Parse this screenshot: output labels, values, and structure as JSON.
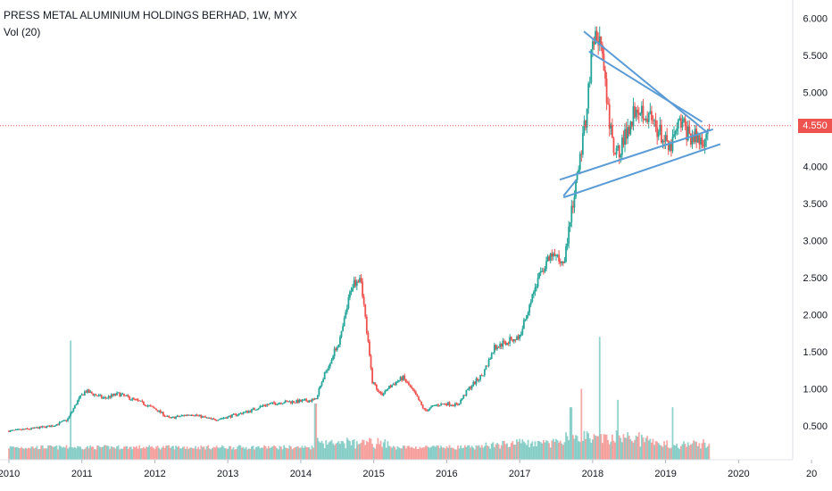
{
  "header": {
    "symbol_line": "PRESS METAL ALUMINIUM HOLDINGS BERHAD, 1W, MYX",
    "volume_line": "Vol (20)"
  },
  "colors": {
    "up": "#26a69a",
    "down": "#ef5350",
    "trendline": "#5b9bd5",
    "last_price_line": "#ef5350",
    "axis_text": "#131722"
  },
  "chart_data": {
    "type": "candlestick",
    "title": "PRESS METAL ALUMINIUM HOLDINGS BERHAD, 1W, MYX",
    "ylim": [
      0.15,
      6.1
    ],
    "xlim": [
      2010.0,
      2020.95
    ],
    "y_ticks": [
      "0.500",
      "1.000",
      "1.500",
      "2.000",
      "2.500",
      "3.000",
      "3.500",
      "4.000",
      "4.500",
      "5.000",
      "5.500",
      "6.000"
    ],
    "x_ticks": [
      "2010",
      "2011",
      "2012",
      "2013",
      "2014",
      "2015",
      "2016",
      "2017",
      "2018",
      "2019",
      "2020",
      "20"
    ],
    "last_price": "4.550",
    "price_path": [
      [
        2010.0,
        0.43
      ],
      [
        2010.3,
        0.46
      ],
      [
        2010.6,
        0.5
      ],
      [
        2010.8,
        0.58
      ],
      [
        2010.95,
        0.85
      ],
      [
        2011.05,
        0.97
      ],
      [
        2011.3,
        0.87
      ],
      [
        2011.5,
        0.93
      ],
      [
        2011.8,
        0.82
      ],
      [
        2012.0,
        0.73
      ],
      [
        2012.2,
        0.6
      ],
      [
        2012.5,
        0.66
      ],
      [
        2012.8,
        0.58
      ],
      [
        2013.0,
        0.62
      ],
      [
        2013.3,
        0.7
      ],
      [
        2013.5,
        0.78
      ],
      [
        2013.75,
        0.82
      ],
      [
        2014.0,
        0.83
      ],
      [
        2014.2,
        0.85
      ],
      [
        2014.35,
        1.25
      ],
      [
        2014.55,
        1.7
      ],
      [
        2014.7,
        2.4
      ],
      [
        2014.82,
        2.55
      ],
      [
        2014.9,
        1.8
      ],
      [
        2014.98,
        1.1
      ],
      [
        2015.1,
        0.92
      ],
      [
        2015.25,
        1.05
      ],
      [
        2015.4,
        1.15
      ],
      [
        2015.55,
        0.95
      ],
      [
        2015.7,
        0.7
      ],
      [
        2015.85,
        0.78
      ],
      [
        2016.0,
        0.8
      ],
      [
        2016.15,
        0.78
      ],
      [
        2016.3,
        1.0
      ],
      [
        2016.5,
        1.2
      ],
      [
        2016.65,
        1.55
      ],
      [
        2016.85,
        1.65
      ],
      [
        2017.0,
        1.7
      ],
      [
        2017.15,
        2.2
      ],
      [
        2017.3,
        2.6
      ],
      [
        2017.45,
        2.8
      ],
      [
        2017.6,
        2.7
      ],
      [
        2017.75,
        3.6
      ],
      [
        2017.9,
        4.6
      ],
      [
        2018.0,
        5.7
      ],
      [
        2018.1,
        5.75
      ],
      [
        2018.2,
        4.8
      ],
      [
        2018.3,
        4.1
      ],
      [
        2018.45,
        4.4
      ],
      [
        2018.6,
        4.85
      ],
      [
        2018.75,
        4.7
      ],
      [
        2018.9,
        4.5
      ],
      [
        2019.05,
        4.2
      ],
      [
        2019.2,
        4.6
      ],
      [
        2019.35,
        4.4
      ],
      [
        2019.5,
        4.35
      ],
      [
        2019.6,
        4.55
      ]
    ],
    "volume_spikes": [
      [
        2010.85,
        1.5
      ],
      [
        2014.2,
        0.65
      ],
      [
        2017.85,
        0.85
      ],
      [
        2018.1,
        1.55
      ],
      [
        2018.35,
        0.7
      ],
      [
        2019.1,
        0.6
      ],
      [
        2017.7,
        0.6
      ]
    ],
    "trendlines": [
      {
        "from": [
          2017.88,
          5.82
        ],
        "to": [
          2019.58,
          4.45
        ]
      },
      {
        "from": [
          2017.95,
          5.55
        ],
        "to": [
          2019.5,
          4.6
        ]
      },
      {
        "from": [
          2017.55,
          3.82
        ],
        "to": [
          2019.65,
          4.5
        ]
      },
      {
        "from": [
          2017.6,
          3.58
        ],
        "to": [
          2019.75,
          4.3
        ]
      },
      {
        "from": [
          2017.6,
          3.6
        ],
        "to": [
          2017.78,
          3.82
        ]
      }
    ]
  }
}
